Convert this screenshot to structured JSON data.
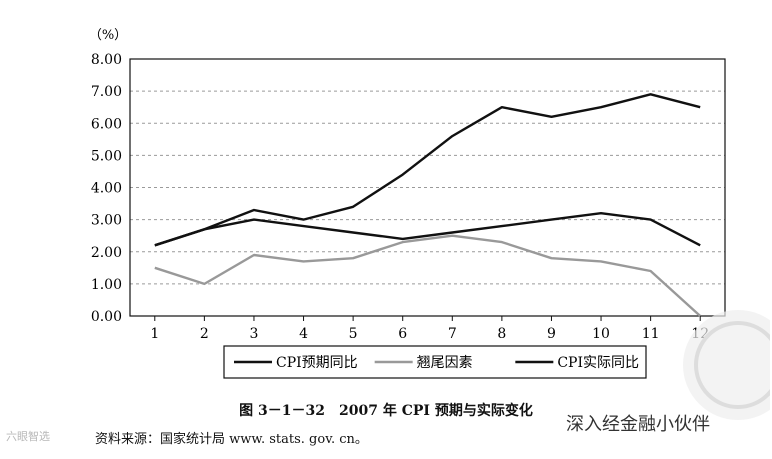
{
  "chart_data": {
    "type": "line",
    "title": "图 3－1－32　2007 年 CPI 预期与实际变化",
    "ylabel": "（%）",
    "xlabel": "",
    "ylim": [
      0,
      8
    ],
    "yticks": [
      "0.00",
      "1.00",
      "2.00",
      "3.00",
      "4.00",
      "5.00",
      "6.00",
      "7.00",
      "8.00"
    ],
    "x": [
      1,
      2,
      3,
      4,
      5,
      6,
      7,
      8,
      9,
      10,
      11,
      12
    ],
    "xticks": [
      "1",
      "2",
      "3",
      "4",
      "5",
      "6",
      "7",
      "8",
      "9",
      "10",
      "11",
      "12"
    ],
    "grid": "horizontal dashed",
    "legend_position": "bottom",
    "series": [
      {
        "name": "CPI预期同比",
        "color": "#111111",
        "values": [
          2.2,
          2.7,
          3.3,
          3.0,
          3.4,
          4.4,
          5.6,
          6.5,
          6.2,
          6.5,
          6.9,
          6.5
        ]
      },
      {
        "name": "翘尾因素",
        "color": "#999999",
        "values": [
          1.5,
          1.0,
          1.9,
          1.7,
          1.8,
          2.3,
          2.5,
          2.3,
          1.8,
          1.7,
          1.4,
          0.0
        ]
      },
      {
        "name": "CPI实际同比",
        "color": "#111111",
        "values": [
          2.2,
          2.7,
          3.0,
          2.8,
          2.6,
          2.4,
          2.6,
          2.8,
          3.0,
          3.2,
          3.0,
          2.2
        ]
      }
    ]
  },
  "footer": {
    "source": "资料来源：国家统计局 www. stats. gov. cn。",
    "watermark_left": "六眼智选",
    "watermark_right": "深入经金融小伙伴"
  }
}
